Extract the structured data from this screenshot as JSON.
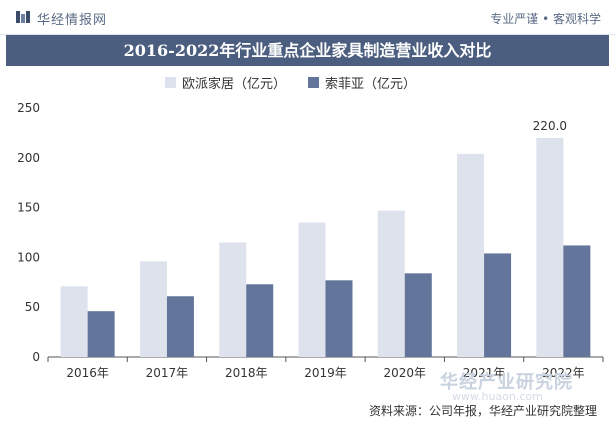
{
  "header": {
    "brand": "华经情报网",
    "slogan": "专业严谨 • 客观科学"
  },
  "chart_data": {
    "type": "bar",
    "title": "2016-2022年行业重点企业家具制造营业收入对比",
    "categories": [
      "2016年",
      "2017年",
      "2018年",
      "2019年",
      "2020年",
      "2021年",
      "2022年"
    ],
    "series": [
      {
        "name": "欧派家居（亿元）",
        "color": "#dde2ec",
        "values": [
          71,
          96,
          115,
          135,
          147,
          204,
          220
        ]
      },
      {
        "name": "索菲亚（亿元）",
        "color": "#63759a",
        "values": [
          46,
          61,
          73,
          77,
          84,
          104,
          112
        ]
      }
    ],
    "data_labels": [
      {
        "series": 0,
        "index": 6,
        "text": "220.0"
      }
    ],
    "ylim": [
      0,
      250
    ],
    "yticks": [
      0,
      50,
      100,
      150,
      200,
      250
    ],
    "xlabel": "",
    "ylabel": "",
    "grid": false,
    "legend": "top"
  },
  "watermark": {
    "text": "华经产业研究院",
    "url": "www.huaon.com"
  },
  "source": "资料来源：公司年报，华经产业研究院整理"
}
